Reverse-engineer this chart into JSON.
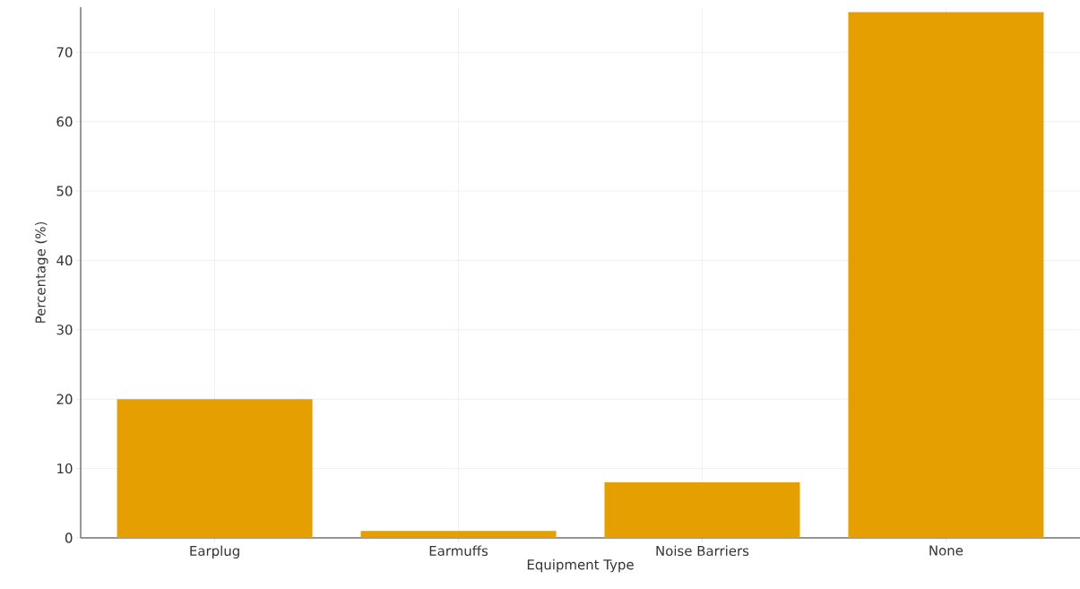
{
  "chart_data": {
    "type": "bar",
    "xlabel": "Equipment Type",
    "ylabel": "Percentage (%)",
    "categories": [
      "Earplug",
      "Earmuffs",
      "Noise Barriers",
      "None"
    ],
    "values": [
      20,
      1,
      8,
      75.8
    ],
    "color": "#e69f00",
    "ylim": [
      0,
      76.5
    ],
    "yticks": [
      0,
      10,
      20,
      30,
      40,
      50,
      60,
      70
    ],
    "grid": true
  }
}
